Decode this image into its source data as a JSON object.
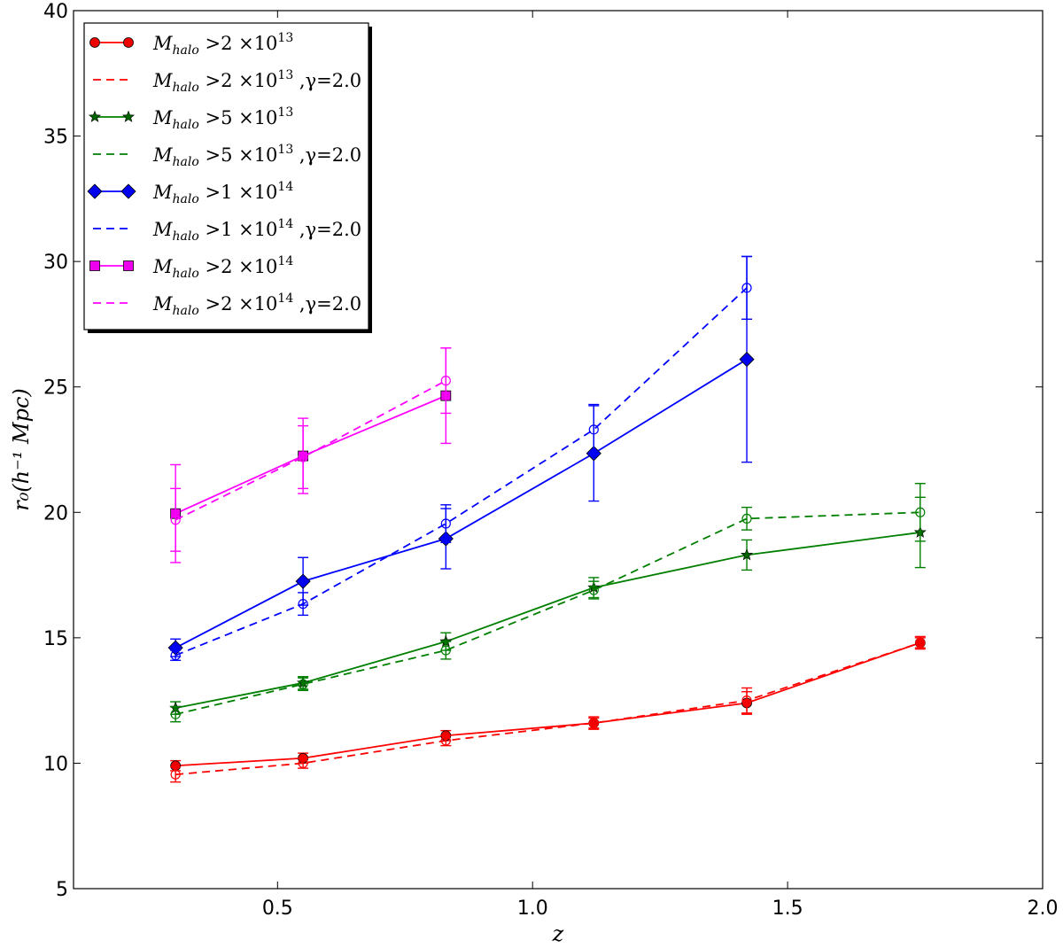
{
  "chart_data": {
    "type": "line",
    "xlabel": "z",
    "ylabel": "r₀(h⁻¹ Mpc)",
    "xlim": [
      0.1,
      2.0
    ],
    "ylim": [
      5,
      40
    ],
    "xticks": [
      0.5,
      1.0,
      1.5,
      2.0
    ],
    "xtick_labels": [
      "0.5",
      "1.0",
      "1.5",
      "2.0"
    ],
    "yticks": [
      5,
      10,
      15,
      20,
      25,
      30,
      35,
      40
    ],
    "ytick_labels": [
      "5",
      "10",
      "15",
      "20",
      "25",
      "30",
      "35",
      "40"
    ],
    "grid": false,
    "legend_position": "top-left",
    "series": [
      {
        "name": "M_halo >2 ×10^13",
        "legend": {
          "m": "M",
          "sub": "halo",
          "rest": " >2 ×10",
          "sup": "13",
          "tail": ""
        },
        "color": "#ff0000",
        "marker_color": "#ee0000",
        "style": "solid",
        "marker": "circle",
        "x": [
          0.3,
          0.55,
          0.83,
          1.12,
          1.42,
          1.76
        ],
        "y": [
          9.9,
          10.2,
          11.1,
          11.6,
          12.4,
          14.8
        ],
        "err": [
          0.2,
          0.2,
          0.2,
          0.25,
          0.45,
          0.25
        ]
      },
      {
        "name": "M_halo >2 ×10^13 ,γ=2.0",
        "legend": {
          "m": "M",
          "sub": "halo",
          "rest": " >2 ×10",
          "sup": "13",
          "tail": " ,γ=2.0"
        },
        "color": "#ff0000",
        "marker_color": "#ee0000",
        "style": "dashed",
        "marker": "open-circle",
        "x": [
          0.3,
          0.55,
          0.83,
          1.12,
          1.42,
          1.76
        ],
        "y": [
          9.55,
          10.0,
          10.9,
          11.6,
          12.5,
          14.8
        ],
        "err": [
          0.3,
          0.2,
          0.2,
          0.2,
          0.5,
          0.2
        ]
      },
      {
        "name": "M_halo >5 ×10^13",
        "legend": {
          "m": "M",
          "sub": "halo",
          "rest": " >5 ×10",
          "sup": "13",
          "tail": ""
        },
        "color": "#007f00",
        "marker_color": "#006400",
        "style": "solid",
        "marker": "star",
        "x": [
          0.3,
          0.55,
          0.83,
          1.12,
          1.42,
          1.76
        ],
        "y": [
          12.2,
          13.2,
          14.85,
          17.0,
          18.3,
          19.2
        ],
        "err": [
          0.25,
          0.25,
          0.35,
          0.4,
          0.6,
          1.4
        ]
      },
      {
        "name": "M_halo >5 ×10^13 ,γ=2.0",
        "legend": {
          "m": "M",
          "sub": "halo",
          "rest": " >5 ×10",
          "sup": "13",
          "tail": " ,γ=2.0"
        },
        "color": "#007f00",
        "marker_color": "#007f00",
        "style": "dashed",
        "marker": "open-circle",
        "x": [
          0.3,
          0.55,
          0.83,
          1.12,
          1.42,
          1.76
        ],
        "y": [
          11.95,
          13.15,
          14.5,
          16.9,
          19.75,
          20.0
        ],
        "err": [
          0.3,
          0.25,
          0.35,
          0.35,
          0.45,
          1.15
        ]
      },
      {
        "name": "M_halo >1 ×10^14",
        "legend": {
          "m": "M",
          "sub": "halo",
          "rest": " >1 ×10",
          "sup": "14",
          "tail": ""
        },
        "color": "#0000ff",
        "marker_color": "#0000ee",
        "style": "solid",
        "marker": "diamond",
        "x": [
          0.3,
          0.55,
          0.83,
          1.12,
          1.42
        ],
        "y": [
          14.6,
          17.25,
          18.95,
          22.35,
          26.1
        ],
        "err": [
          0.35,
          0.95,
          1.2,
          1.9,
          4.1
        ]
      },
      {
        "name": "M_halo >1 ×10^14 ,γ=2.0",
        "legend": {
          "m": "M",
          "sub": "halo",
          "rest": " >1 ×10",
          "sup": "14",
          "tail": " ,γ=2.0"
        },
        "color": "#0000ff",
        "marker_color": "#0000ff",
        "style": "dashed",
        "marker": "open-circle",
        "x": [
          0.3,
          0.55,
          0.83,
          1.12,
          1.42
        ],
        "y": [
          14.3,
          16.35,
          19.55,
          23.3,
          28.95
        ],
        "err": [
          0.2,
          0.45,
          0.75,
          1.0,
          1.25
        ]
      },
      {
        "name": "M_halo >2 ×10^14",
        "legend": {
          "m": "M",
          "sub": "halo",
          "rest": " >2 ×10",
          "sup": "14",
          "tail": ""
        },
        "color": "#ff00ff",
        "marker_color": "#ee00ee",
        "style": "solid",
        "marker": "square",
        "x": [
          0.3,
          0.55,
          0.83
        ],
        "y": [
          19.95,
          22.25,
          24.65
        ],
        "err": [
          1.95,
          1.5,
          1.9
        ]
      },
      {
        "name": "M_halo >2 ×10^14 ,γ=2.0",
        "legend": {
          "m": "M",
          "sub": "halo",
          "rest": " >2 ×10",
          "sup": "14",
          "tail": " ,γ=2.0"
        },
        "color": "#ff00ff",
        "marker_color": "#ff00ff",
        "style": "dashed",
        "marker": "open-circle",
        "x": [
          0.3,
          0.55,
          0.83
        ],
        "y": [
          19.7,
          22.2,
          25.25
        ],
        "err": [
          1.25,
          1.25,
          1.3
        ]
      }
    ]
  }
}
